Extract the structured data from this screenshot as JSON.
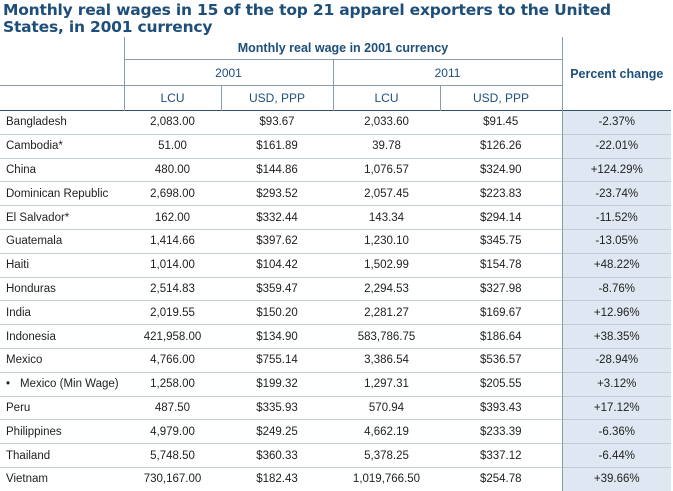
{
  "title": "Monthly real wages in 15 of the top 21 apparel exporters to the United States, in 2001 currency",
  "headers": {
    "group": "Monthly real wage in 2001 currency",
    "year_a": "2001",
    "year_b": "2011",
    "lcu": "LCU",
    "usd": "USD, PPP",
    "pct": "Percent change"
  },
  "bullet": "•",
  "rows": [
    {
      "country": "Bangladesh",
      "lcu2001": "2,083.00",
      "usd2001": "$93.67",
      "lcu2011": "2,033.60",
      "usd2011": "$91.45",
      "pct": "-2.37%"
    },
    {
      "country": "Cambodia*",
      "lcu2001": "51.00",
      "usd2001": "$161.89",
      "lcu2011": "39.78",
      "usd2011": "$126.26",
      "pct": "-22.01%"
    },
    {
      "country": "China",
      "lcu2001": "480.00",
      "usd2001": "$144.86",
      "lcu2011": "1,076.57",
      "usd2011": "$324.90",
      "pct": "+124.29%"
    },
    {
      "country": "Dominican Republic",
      "lcu2001": "2,698.00",
      "usd2001": "$293.52",
      "lcu2011": "2,057.45",
      "usd2011": "$223.83",
      "pct": "-23.74%"
    },
    {
      "country": "El Salvador*",
      "lcu2001": "162.00",
      "usd2001": "$332.44",
      "lcu2011": "143.34",
      "usd2011": "$294.14",
      "pct": "-11.52%"
    },
    {
      "country": "Guatemala",
      "lcu2001": "1,414.66",
      "usd2001": "$397.62",
      "lcu2011": "1,230.10",
      "usd2011": "$345.75",
      "pct": "-13.05%"
    },
    {
      "country": "Haiti",
      "lcu2001": "1,014.00",
      "usd2001": "$104.42",
      "lcu2011": "1,502.99",
      "usd2011": "$154.78",
      "pct": "+48.22%"
    },
    {
      "country": "Honduras",
      "lcu2001": "2,514.83",
      "usd2001": "$359.47",
      "lcu2011": "2,294.53",
      "usd2011": "$327.98",
      "pct": "-8.76%"
    },
    {
      "country": "India",
      "lcu2001": "2,019.55",
      "usd2001": "$150.20",
      "lcu2011": "2,281.27",
      "usd2011": "$169.67",
      "pct": "+12.96%"
    },
    {
      "country": "Indonesia",
      "lcu2001": "421,958.00",
      "usd2001": "$134.90",
      "lcu2011": "583,786.75",
      "usd2011": "$186.64",
      "pct": "+38.35%"
    },
    {
      "country": "Mexico",
      "lcu2001": "4,766.00",
      "usd2001": "$755.14",
      "lcu2011": "3,386.54",
      "usd2011": "$536.57",
      "pct": "-28.94%"
    },
    {
      "country": "Mexico (Min Wage)",
      "bulleted": true,
      "lcu2001": "1,258.00",
      "usd2001": "$199.32",
      "lcu2011": "1,297.31",
      "usd2011": "$205.55",
      "pct": "+3.12%"
    },
    {
      "country": "Peru",
      "lcu2001": "487.50",
      "usd2001": "$335.93",
      "lcu2011": "570.94",
      "usd2011": "$393.43",
      "pct": "+17.12%"
    },
    {
      "country": "Philippines",
      "lcu2001": "4,979.00",
      "usd2001": "$249.25",
      "lcu2011": "4,662.19",
      "usd2011": "$233.39",
      "pct": "-6.36%"
    },
    {
      "country": "Thailand",
      "lcu2001": "5,748.50",
      "usd2001": "$360.33",
      "lcu2011": "5,378.25",
      "usd2011": "$337.12",
      "pct": "-6.44%"
    },
    {
      "country": "Vietnam",
      "lcu2001": "730,167.00",
      "usd2001": "$182.43",
      "lcu2011": "1,019,766.50",
      "usd2011": "$254.78",
      "pct": "+39.66%"
    }
  ]
}
